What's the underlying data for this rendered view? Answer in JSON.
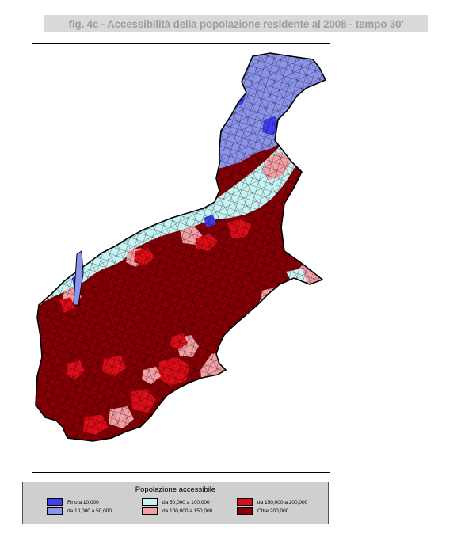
{
  "title": "fig. 4c -  Accessibilità della popolazione residente al 2008 - tempo 30'",
  "legend": {
    "title": "Popolazione accessibile",
    "classes": [
      {
        "label": "Fino a 10,000",
        "color": "#3f3ff0"
      },
      {
        "label": "da 10,000 a 50,000",
        "color": "#8c93ea"
      },
      {
        "label": "da 50,000 a 100,000",
        "color": "#c6f3f3"
      },
      {
        "label": "da 100,000 a 150,000",
        "color": "#f2a0a5"
      },
      {
        "label": "da 150,000 a 200,000",
        "color": "#dd0d18"
      },
      {
        "label": "Oltre 200,000",
        "color": "#850005"
      }
    ]
  }
}
